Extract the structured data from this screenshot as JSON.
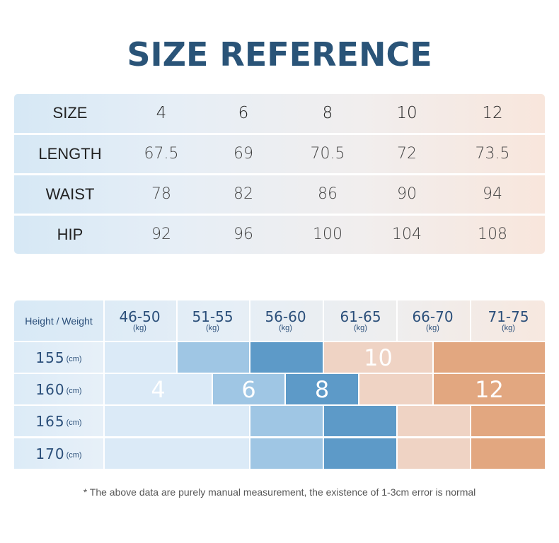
{
  "title": "SIZE REFERENCE",
  "size_table": {
    "rows": [
      {
        "label": "SIZE",
        "values": [
          "4",
          "6",
          "8",
          "10",
          "12"
        ]
      },
      {
        "label": "LENGTH",
        "values": [
          "67.5",
          "69",
          "70.5",
          "72",
          "73.5"
        ]
      },
      {
        "label": "WAIST",
        "values": [
          "78",
          "82",
          "86",
          "90",
          "94"
        ]
      },
      {
        "label": "HIP",
        "values": [
          "92",
          "96",
          "100",
          "104",
          "108"
        ]
      }
    ]
  },
  "hw_chart": {
    "header_label": "Height / Weight",
    "weight_unit": "(kg)",
    "height_unit": "(cm)",
    "weights": [
      "46-50",
      "51-55",
      "56-60",
      "61-65",
      "66-70",
      "71-75"
    ],
    "heights": [
      "155",
      "160",
      "165",
      "170"
    ],
    "size_labels": {
      "s4": "4",
      "s6": "6",
      "s8": "8",
      "s10": "10",
      "s12": "12"
    },
    "colors": {
      "s4": "#dbeaf7",
      "s6": "#9fc6e4",
      "s8": "#5d9ac8",
      "s10": "#efd3c4",
      "s12": "#e2a780"
    }
  },
  "note": "* The above data are purely manual measurement, the existence of 1-3cm error is normal"
}
